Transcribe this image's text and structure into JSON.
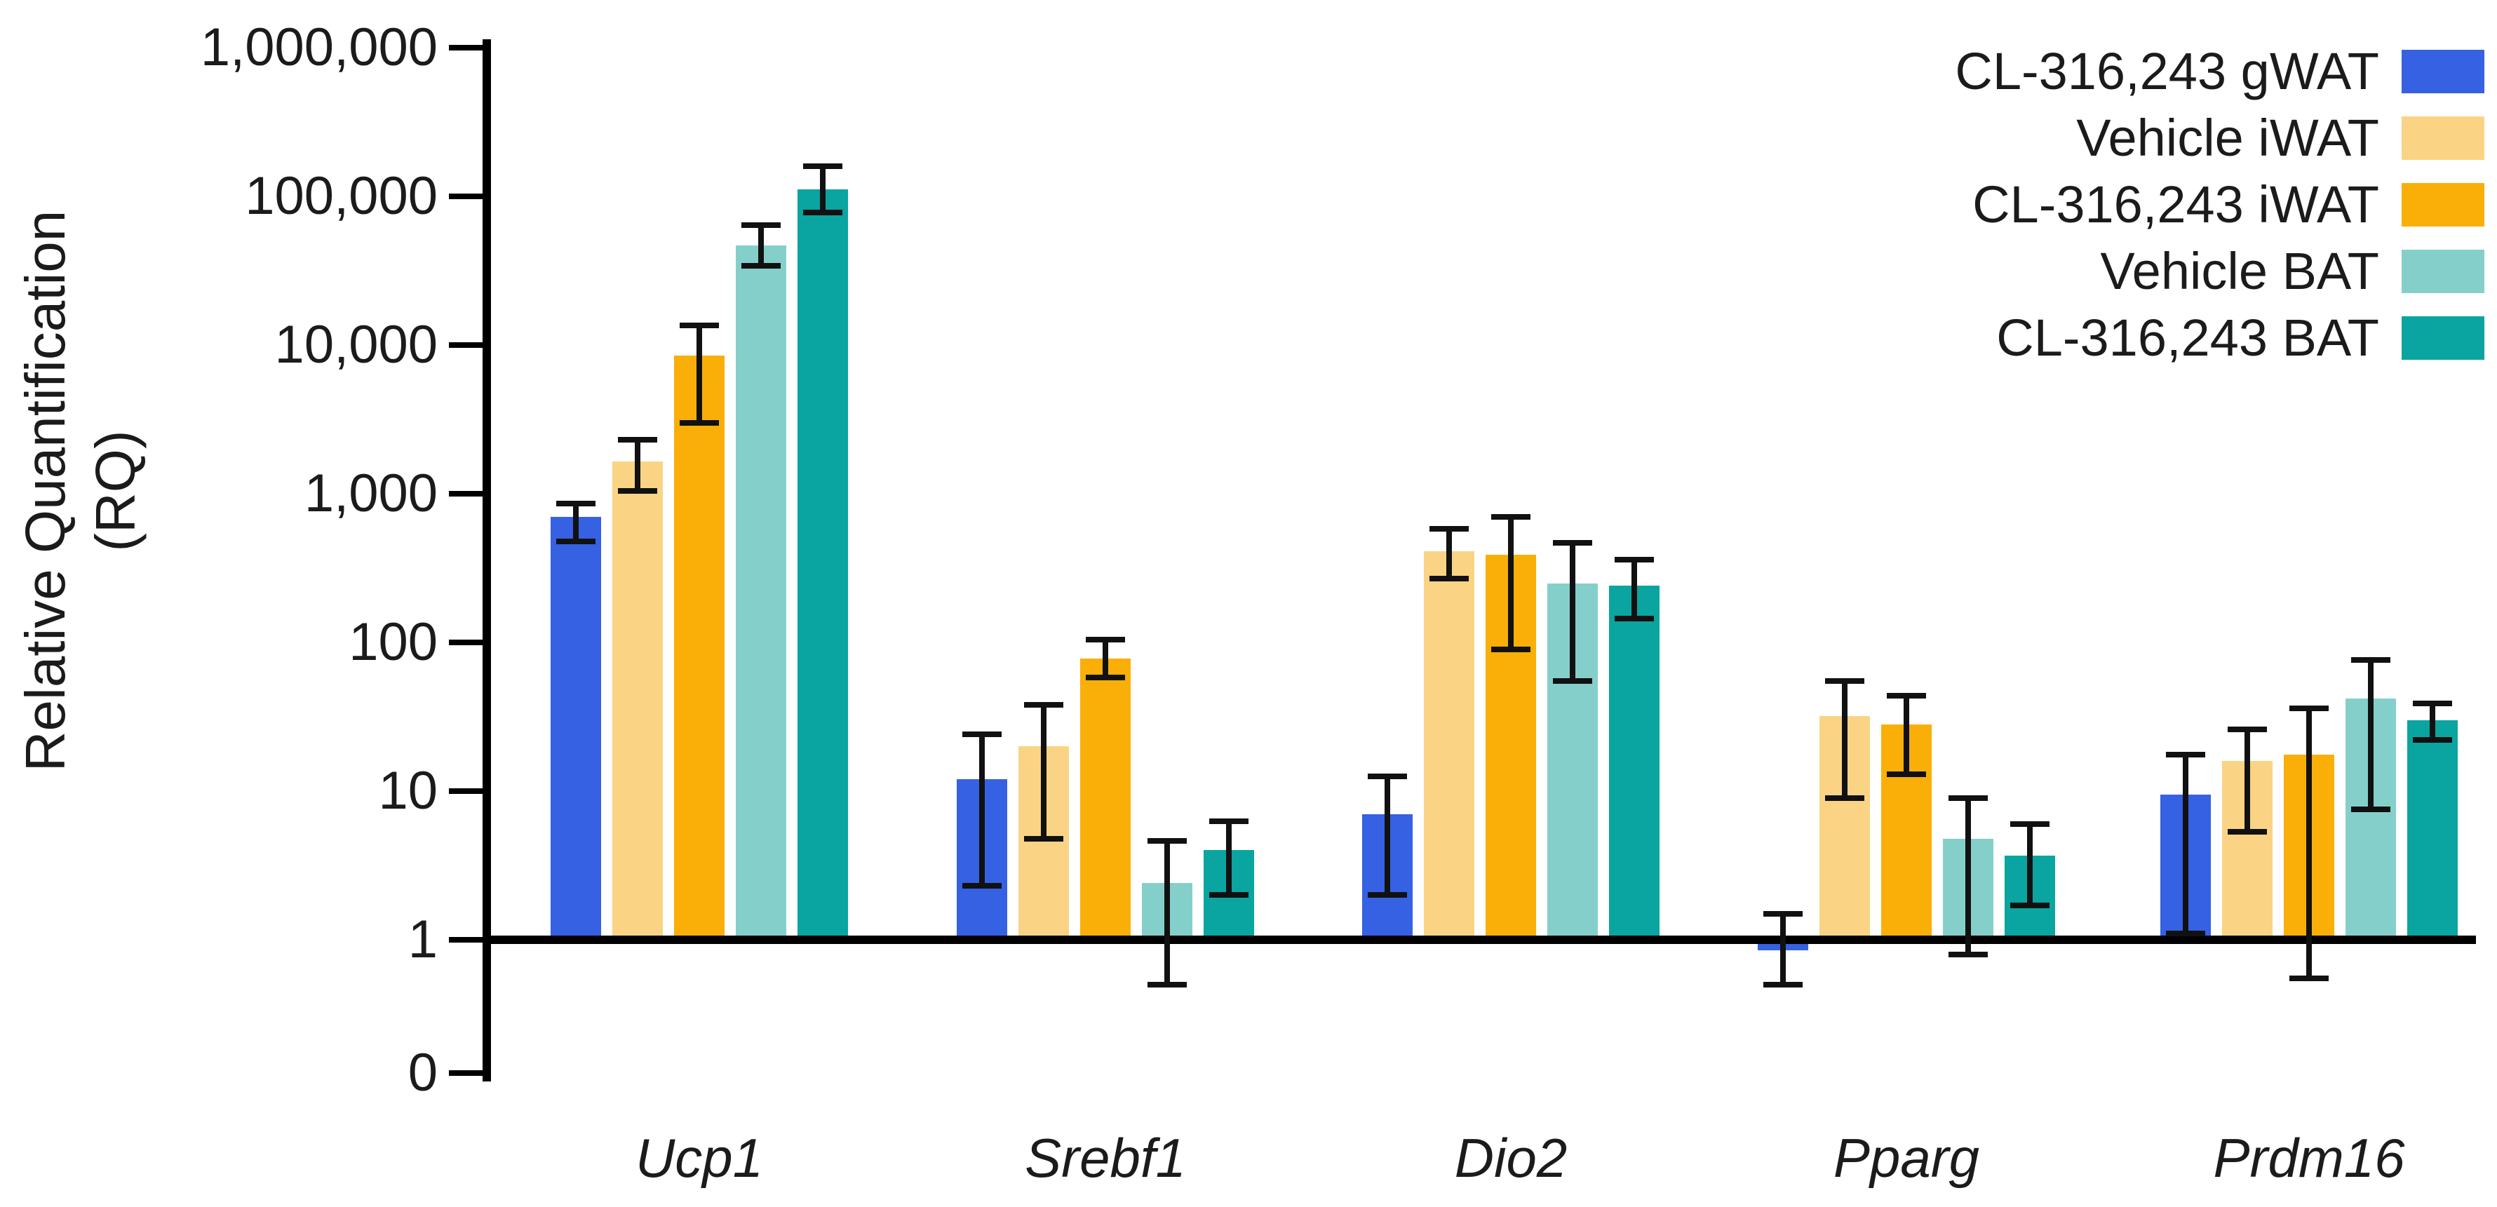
{
  "chart_data": {
    "type": "bar",
    "title": "",
    "ylabel_line1": "Relative Quantification",
    "ylabel_line2": "(RQ)",
    "yscale": "log",
    "grid": false,
    "legend_position": "top-right",
    "ylim": [
      1,
      1000000
    ],
    "ytick_values": [
      1000000,
      100000,
      10000,
      1000,
      100,
      10,
      1,
      0
    ],
    "ytick_labels": [
      "1,000,000",
      "100,000",
      "10,000",
      "1,000",
      "100",
      "10",
      "1",
      "0"
    ],
    "categories": [
      "Ucp1",
      "Srebf1",
      "Dio2",
      "Pparg",
      "Prdm16"
    ],
    "series": [
      {
        "name": "CL-316,243 gWAT",
        "color": "#3561E2",
        "values": [
          700,
          12,
          7,
          0.85,
          9.5
        ],
        "err_lo": [
          480,
          2.3,
          2.0,
          0.5,
          1.1
        ],
        "err_hi": [
          860,
          24,
          12.5,
          1.5,
          17.5
        ]
      },
      {
        "name": "Vehicle iWAT",
        "color": "#FAD484",
        "values": [
          1650,
          20,
          410,
          32,
          16
        ],
        "err_lo": [
          1050,
          4.8,
          270,
          9,
          5.3
        ],
        "err_hi": [
          2300,
          38,
          580,
          55,
          26
        ]
      },
      {
        "name": "CL-316,243 iWAT",
        "color": "#FAAF08",
        "values": [
          8500,
          78,
          390,
          28,
          17.5
        ],
        "err_lo": [
          3000,
          58,
          90,
          13,
          0.55
        ],
        "err_hi": [
          13500,
          105,
          700,
          44,
          36
        ]
      },
      {
        "name": "Vehicle BAT",
        "color": "#85CFCB",
        "values": [
          47000,
          2.4,
          250,
          4.8,
          42
        ],
        "err_lo": [
          34000,
          0.5,
          55,
          0.8,
          7.5
        ],
        "err_hi": [
          64000,
          4.6,
          470,
          9,
          76
        ]
      },
      {
        "name": "CL-316,243 BAT",
        "color": "#0AA5A0",
        "values": [
          112000,
          4.0,
          240,
          3.7,
          30
        ],
        "err_lo": [
          78000,
          2.0,
          145,
          1.7,
          22
        ],
        "err_hi": [
          160000,
          6.3,
          360,
          6,
          39
        ]
      }
    ]
  }
}
